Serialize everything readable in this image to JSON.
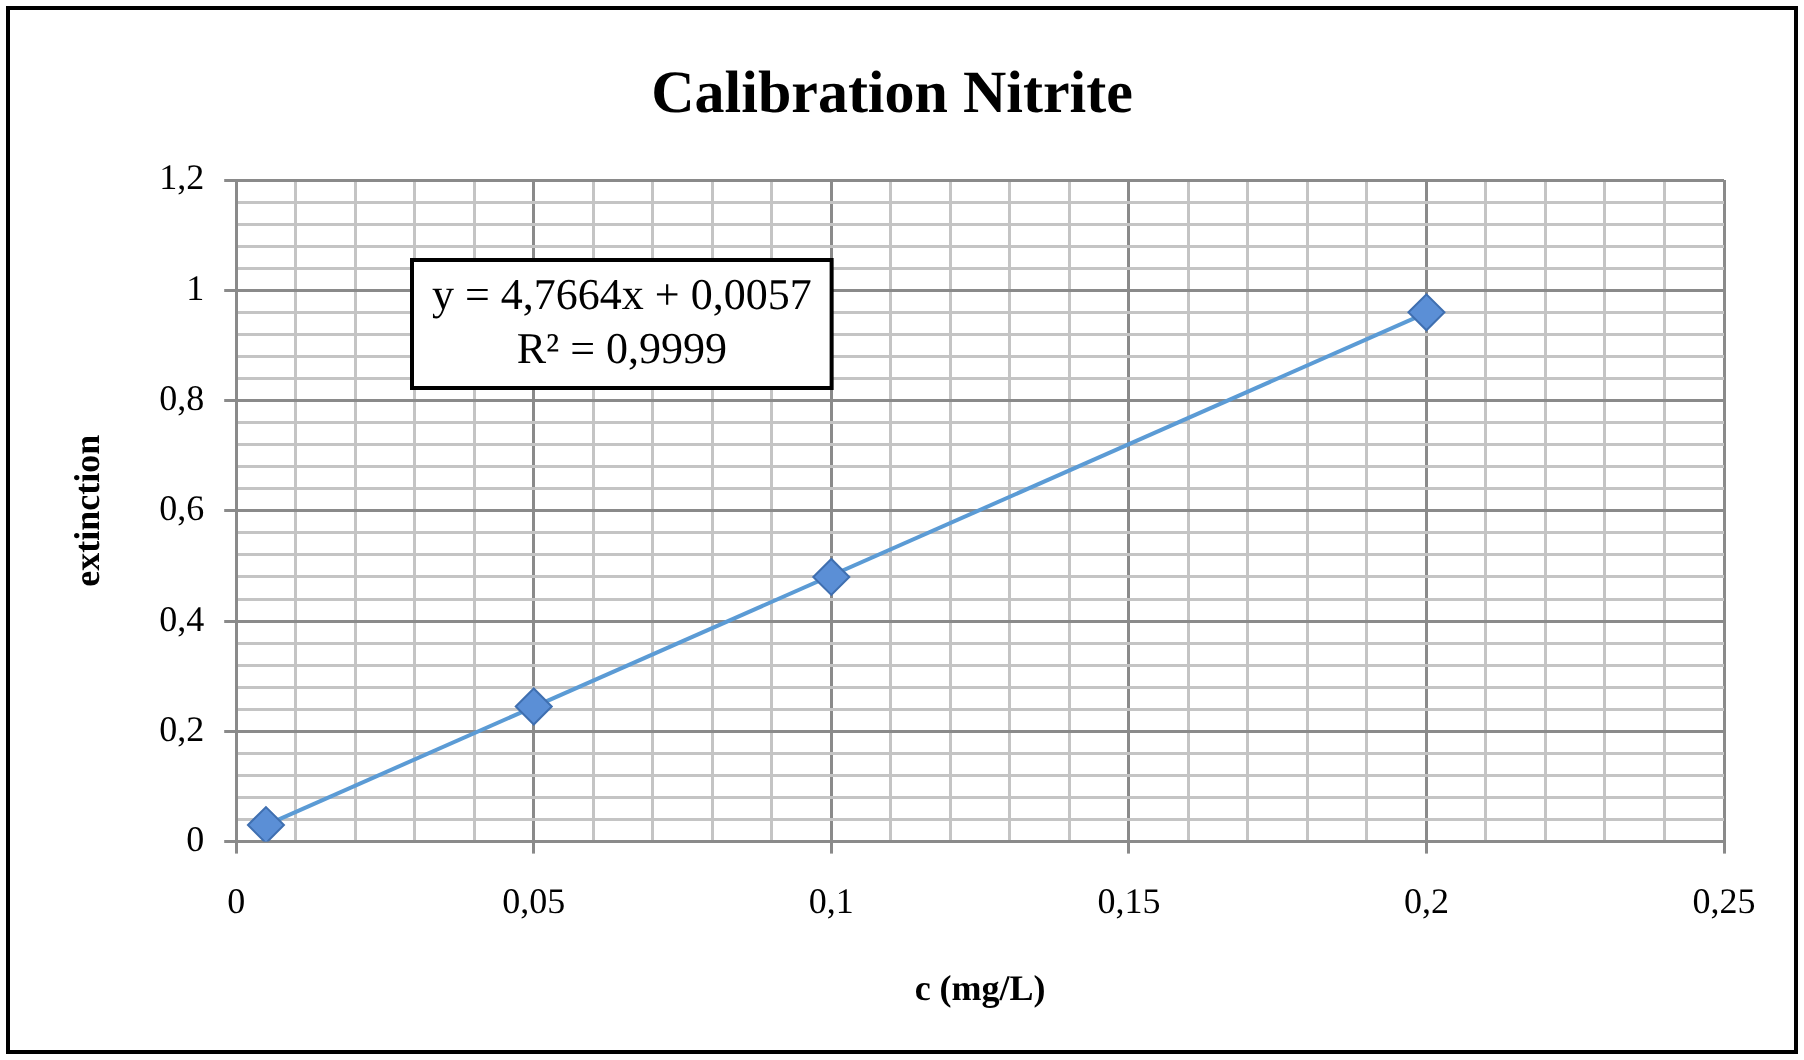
{
  "chart_data": {
    "type": "scatter",
    "title": "Calibration Nitrite",
    "xlabel": "c (mg/L)",
    "ylabel": "extinction",
    "series": [
      {
        "color": "#5b8fd6",
        "x": [
          0.005,
          0.05,
          0.1,
          0.2
        ],
        "values": [
          0.03,
          0.245,
          0.48,
          0.96
        ]
      },
      {
        "type": "line",
        "color": "#5b9bd5",
        "marker": "none",
        "x": [
          0.005,
          0.2
        ],
        "values": [
          0.03,
          0.959
        ]
      }
    ],
    "annotations": [
      "y = 4,7664x + 0,0057",
      "R² = 0,9999"
    ],
    "xlim": [
      0,
      0.25
    ],
    "xticks": [
      0,
      {
        "value": 0.01,
        "label": null
      },
      {
        "value": 0.02,
        "label": null
      },
      {
        "value": 0.03,
        "label": null
      },
      {
        "value": 0.04,
        "label": null
      },
      {
        "value": 0.05,
        "label": "0,05"
      },
      {
        "value": 0.06,
        "label": null
      },
      {
        "value": 0.07,
        "label": null
      },
      {
        "value": 0.08,
        "label": null
      },
      {
        "value": 0.09,
        "label": null
      },
      {
        "value": 0.1,
        "label": "0,1"
      },
      {
        "value": 0.11,
        "label": null
      },
      {
        "value": 0.12,
        "label": null
      },
      {
        "value": 0.13,
        "label": null
      },
      {
        "value": 0.14,
        "label": null
      },
      {
        "value": 0.15,
        "label": "0,15"
      },
      {
        "value": 0.16,
        "label": null
      },
      {
        "value": 0.17,
        "label": null
      },
      {
        "value": 0.18,
        "label": null
      },
      {
        "value": 0.19,
        "label": null
      },
      {
        "value": 0.2,
        "label": "0,2"
      },
      {
        "value": 0.21,
        "label": null
      },
      {
        "value": 0.22,
        "label": null
      },
      {
        "value": 0.23,
        "label": null
      },
      {
        "value": 0.24,
        "label": null
      },
      {
        "value": 0.25,
        "label": "0,25"
      }
    ],
    "ylim": [
      0,
      1.2
    ],
    "yticks": [
      0,
      {
        "value": 0.04,
        "label": null
      },
      {
        "value": 0.08,
        "label": null
      },
      {
        "value": 0.12,
        "label": null
      },
      {
        "value": 0.16,
        "label": null
      },
      {
        "value": 0.2,
        "label": "0,2"
      },
      {
        "value": 0.24,
        "label": null
      },
      {
        "value": 0.28,
        "label": null
      },
      {
        "value": 0.32,
        "label": null
      },
      {
        "value": 0.36,
        "label": null
      },
      {
        "value": 0.4,
        "label": "0,4"
      },
      {
        "value": 0.44,
        "label": null
      },
      {
        "value": 0.48,
        "label": null
      },
      {
        "value": 0.52,
        "label": null
      },
      {
        "value": 0.56,
        "label": null
      },
      {
        "value": 0.6,
        "label": "0,6"
      },
      {
        "value": 0.64,
        "label": null
      },
      {
        "value": 0.68,
        "label": null
      },
      {
        "value": 0.72,
        "label": null
      },
      {
        "value": 0.76,
        "label": null
      },
      {
        "value": 0.8,
        "label": "0,8"
      },
      {
        "value": 0.84,
        "label": null
      },
      {
        "value": 0.88,
        "label": null
      },
      {
        "value": 0.92,
        "label": null
      },
      {
        "value": 0.96,
        "label": null
      },
      1,
      {
        "value": 1.04,
        "label": null
      },
      {
        "value": 1.08,
        "label": null
      },
      {
        "value": 1.12,
        "label": null
      },
      {
        "value": 1.16,
        "label": null
      },
      {
        "value": 1.2,
        "label": "1,2"
      }
    ],
    "grid": true,
    "legend": false,
    "marker": "diamond",
    "line_style": "solid"
  }
}
